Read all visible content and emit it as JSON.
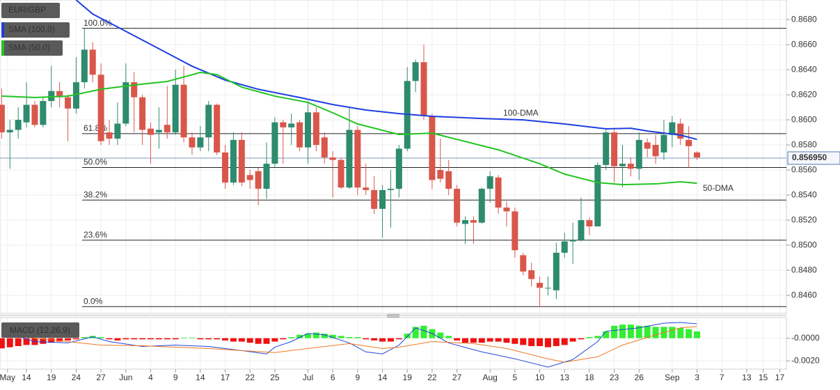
{
  "chart_data": [
    {
      "type": "candlestick",
      "xlim": [
        -0.2,
        94.8
      ],
      "ylim": [
        0.84456,
        0.86956
      ],
      "yticks": [
        {
          "value": 0.846,
          "label": "0.8460"
        },
        {
          "value": 0.848,
          "label": "0.8480"
        },
        {
          "value": 0.85,
          "label": "0.8500"
        },
        {
          "value": 0.852,
          "label": "0.8520"
        },
        {
          "value": 0.854,
          "label": "0.8540"
        },
        {
          "value": 0.856,
          "label": "0.8560"
        },
        {
          "value": 0.858,
          "label": "0.8580"
        },
        {
          "value": 0.86,
          "label": "0.8600"
        },
        {
          "value": 0.862,
          "label": "0.8620"
        },
        {
          "value": 0.864,
          "label": "0.8640"
        },
        {
          "value": 0.866,
          "label": "0.8660"
        },
        {
          "value": 0.868,
          "label": "0.8680"
        }
      ],
      "xticks": [
        {
          "value": 0.7,
          "label": "May"
        },
        {
          "value": 3,
          "label": "14"
        },
        {
          "value": 6,
          "label": "19"
        },
        {
          "value": 9,
          "label": "24"
        },
        {
          "value": 12,
          "label": "27"
        },
        {
          "value": 15,
          "label": "Jun"
        },
        {
          "value": 18,
          "label": "4"
        },
        {
          "value": 21,
          "label": "9"
        },
        {
          "value": 24,
          "label": "14"
        },
        {
          "value": 27,
          "label": "17"
        },
        {
          "value": 30,
          "label": "22"
        },
        {
          "value": 33,
          "label": "25"
        },
        {
          "value": 37,
          "label": "Jul"
        },
        {
          "value": 40,
          "label": "6"
        },
        {
          "value": 43,
          "label": "9"
        },
        {
          "value": 46,
          "label": "14"
        },
        {
          "value": 49,
          "label": "19"
        },
        {
          "value": 52,
          "label": "22"
        },
        {
          "value": 55,
          "label": "27"
        },
        {
          "value": 59,
          "label": "Aug"
        },
        {
          "value": 62,
          "label": "5"
        },
        {
          "value": 65,
          "label": "10"
        },
        {
          "value": 68,
          "label": "13"
        },
        {
          "value": 71,
          "label": "18"
        },
        {
          "value": 74,
          "label": "23"
        },
        {
          "value": 77,
          "label": "26"
        },
        {
          "value": 81,
          "label": "Sep"
        },
        {
          "value": 84,
          "label": "3"
        },
        {
          "value": 87,
          "label": "7"
        },
        {
          "value": 90,
          "label": "13"
        },
        {
          "value": 92,
          "label": "15"
        },
        {
          "value": 94,
          "label": "17"
        }
      ],
      "grid": true,
      "up_color": "#2e8b6e",
      "down_color": "#d9574a",
      "series": [
        {
          "name": "EUR/GBP",
          "open": [
            0.8612,
            0.859,
            0.8592,
            0.8598,
            0.8612,
            0.8596,
            0.8615,
            0.8623,
            0.8618,
            0.8609,
            0.863,
            0.8656,
            0.8636,
            0.859,
            0.8585,
            0.8597,
            0.863,
            0.8618,
            0.8593,
            0.859,
            0.8596,
            0.859,
            0.8628,
            0.8586,
            0.8578,
            0.8586,
            0.8612,
            0.8574,
            0.855,
            0.8584,
            0.8556,
            0.8559,
            0.8545,
            0.8565,
            0.8598,
            0.8594,
            0.8598,
            0.8578,
            0.8606,
            0.8586,
            0.857,
            0.8568,
            0.8546,
            0.8592,
            0.8546,
            0.8544,
            0.8529,
            0.8544,
            0.8545,
            0.8577,
            0.8631,
            0.8646,
            0.8603,
            0.856,
            0.8559,
            0.8545,
            0.8517,
            0.852,
            0.8518,
            0.8545,
            0.8554,
            0.853,
            0.8527,
            0.8492,
            0.848,
            0.847,
            0.8466,
            0.8464,
            0.8494,
            0.8503,
            0.8504,
            0.852,
            0.8515,
            0.8564,
            0.859,
            0.8563,
            0.8565,
            0.8561,
            0.8582,
            0.858,
            0.8574,
            0.8588,
            0.8597,
            0.8584,
            0.8574
          ],
          "high": [
            0.8625,
            0.86,
            0.861,
            0.863,
            0.8615,
            0.8618,
            0.8643,
            0.863,
            0.862,
            0.865,
            0.8673,
            0.8662,
            0.8645,
            0.86,
            0.8614,
            0.8645,
            0.8638,
            0.862,
            0.8598,
            0.861,
            0.8627,
            0.864,
            0.8643,
            0.859,
            0.8595,
            0.8615,
            0.8613,
            0.858,
            0.859,
            0.859,
            0.856,
            0.8562,
            0.8582,
            0.8602,
            0.86,
            0.8605,
            0.86,
            0.8615,
            0.861,
            0.859,
            0.8575,
            0.857,
            0.861,
            0.8595,
            0.8565,
            0.8555,
            0.8548,
            0.856,
            0.858,
            0.8642,
            0.8648,
            0.866,
            0.8605,
            0.8585,
            0.8568,
            0.8548,
            0.8523,
            0.8523,
            0.8546,
            0.8559,
            0.8556,
            0.8535,
            0.853,
            0.8494,
            0.8486,
            0.8475,
            0.8475,
            0.8502,
            0.851,
            0.8518,
            0.8538,
            0.8522,
            0.8566,
            0.8592,
            0.8593,
            0.858,
            0.857,
            0.859,
            0.8585,
            0.8588,
            0.86,
            0.8603,
            0.8601,
            0.8595,
            0.8575
          ],
          "low": [
            0.8585,
            0.8561,
            0.8585,
            0.8594,
            0.8594,
            0.8594,
            0.861,
            0.861,
            0.8583,
            0.8605,
            0.8625,
            0.863,
            0.858,
            0.858,
            0.858,
            0.8595,
            0.859,
            0.858,
            0.8565,
            0.8577,
            0.8585,
            0.8588,
            0.8582,
            0.8572,
            0.8575,
            0.8575,
            0.8572,
            0.8545,
            0.8548,
            0.8547,
            0.8545,
            0.8532,
            0.8537,
            0.8562,
            0.8565,
            0.858,
            0.8575,
            0.8565,
            0.8575,
            0.8565,
            0.8538,
            0.8545,
            0.8545,
            0.854,
            0.854,
            0.8525,
            0.8506,
            0.8514,
            0.8538,
            0.8575,
            0.8622,
            0.86,
            0.8545,
            0.855,
            0.854,
            0.8515,
            0.8501,
            0.8501,
            0.8517,
            0.8534,
            0.8525,
            0.8515,
            0.849,
            0.8476,
            0.8467,
            0.8451,
            0.846,
            0.8457,
            0.849,
            0.8485,
            0.8503,
            0.8508,
            0.8515,
            0.856,
            0.855,
            0.8546,
            0.8555,
            0.8552,
            0.857,
            0.8565,
            0.8568,
            0.8578,
            0.858,
            0.8562,
            0.8568
          ],
          "close": [
            0.859,
            0.8592,
            0.86,
            0.8612,
            0.8596,
            0.8615,
            0.8623,
            0.8618,
            0.8609,
            0.863,
            0.8656,
            0.8636,
            0.8583,
            0.8585,
            0.8597,
            0.863,
            0.8618,
            0.8592,
            0.8588,
            0.8592,
            0.859,
            0.8628,
            0.8586,
            0.8578,
            0.8586,
            0.8612,
            0.8574,
            0.855,
            0.8584,
            0.855,
            0.8552,
            0.8545,
            0.8565,
            0.8598,
            0.8594,
            0.8597,
            0.8578,
            0.8606,
            0.858,
            0.857,
            0.8568,
            0.8546,
            0.8592,
            0.8546,
            0.8544,
            0.8529,
            0.8544,
            0.8545,
            0.8577,
            0.8631,
            0.8646,
            0.8603,
            0.8552,
            0.8553,
            0.8545,
            0.8518,
            0.852,
            0.8518,
            0.8545,
            0.8555,
            0.853,
            0.8527,
            0.8496,
            0.8479,
            0.8473,
            0.8466,
            0.8466,
            0.8494,
            0.8503,
            0.8504,
            0.852,
            0.8515,
            0.8564,
            0.859,
            0.8563,
            0.8565,
            0.8561,
            0.8584,
            0.8577,
            0.8571,
            0.8588,
            0.8598,
            0.8585,
            0.8579,
            0.857
          ]
        },
        {
          "name": "SMA (100,0)",
          "color": "#1f3fe0",
          "x": [
            9,
            11,
            15,
            19,
            23,
            27,
            31,
            36,
            40,
            44,
            48,
            52,
            58,
            63,
            68,
            73,
            76,
            78,
            82,
            84
          ],
          "values": [
            0.86956,
            0.86844,
            0.86706,
            0.86567,
            0.86428,
            0.86317,
            0.86244,
            0.86178,
            0.86122,
            0.86078,
            0.8605,
            0.86028,
            0.86011,
            0.86,
            0.85967,
            0.85928,
            0.85933,
            0.85911,
            0.85878,
            0.85844
          ]
        },
        {
          "name": "SMA (50,0)",
          "color": "#22c422",
          "x": [
            0,
            4,
            8,
            12,
            16,
            20,
            24,
            26,
            29,
            33,
            37,
            40,
            43,
            48,
            52,
            55,
            60,
            65,
            68,
            72,
            75,
            79,
            82,
            84
          ],
          "values": [
            0.86189,
            0.86178,
            0.86189,
            0.86244,
            0.86278,
            0.86306,
            0.86378,
            0.86361,
            0.86261,
            0.86189,
            0.86139,
            0.86056,
            0.85967,
            0.85883,
            0.85894,
            0.85844,
            0.85761,
            0.8565,
            0.85567,
            0.855,
            0.85483,
            0.85489,
            0.85506,
            0.85494
          ]
        }
      ],
      "levels": [
        {
          "label": "100.0%",
          "value": 0.8673
        },
        {
          "label": "61.8%",
          "value": 0.8589
        },
        {
          "label": "50.0%",
          "value": 0.8562
        },
        {
          "label": "38.2%",
          "value": 0.8536
        },
        {
          "label": "23.6%",
          "value": 0.8504
        },
        {
          "label": "0.0%",
          "value": 0.8451
        }
      ],
      "last": {
        "value": 0.85695,
        "label": "0.856950"
      },
      "annotations": [
        {
          "text": "100-DMA",
          "color": "#6b7fe8"
        },
        {
          "text": "50-DMA",
          "color": "#22b822"
        }
      ]
    },
    {
      "type": "macd",
      "title": "MACD (12,26,9)",
      "ylim": [
        -0.00273,
        0.00182
      ],
      "yticks": [
        {
          "value": 0,
          "label": "-0.0000"
        },
        {
          "value": -0.002,
          "label": "-0.0020"
        }
      ],
      "up_color": "#33ee33",
      "down_color": "#ee1111",
      "histogram": [
        -0.0009,
        -0.0008,
        -0.0007,
        -0.0006,
        -0.0006,
        -0.0005,
        -0.0004,
        -0.0003,
        -0.0002,
        -0.0001,
        0.0001,
        0.0002,
        0.0001,
        -0.0001,
        -0.0002,
        -0.0001,
        -0.0001,
        -0.0001,
        -0.0001,
        -0.0001,
        -0.0001,
        -0.0001,
        5e-05,
        5e-05,
        -0.0001,
        -0.0001,
        -0.0001,
        -0.0002,
        -0.0003,
        -0.0003,
        -0.0004,
        -0.0005,
        -0.0005,
        -0.0003,
        -0.0001,
        0.0001,
        0.0003,
        0.0004,
        0.0005,
        0.0004,
        0.0003,
        0.0002,
        0.0001,
        0.0001,
        -0.0001,
        -0.0002,
        -0.0003,
        -0.0003,
        -0.0001,
        0.0004,
        0.001,
        0.0011,
        0.0008,
        0.0005,
        0.0002,
        -0.0002,
        -0.0004,
        -0.0004,
        -0.0004,
        -0.0003,
        -0.0003,
        -0.0004,
        -0.0005,
        -0.0006,
        -0.0007,
        -0.0007,
        -0.0008,
        -0.0007,
        -0.0006,
        -0.0003,
        -0.0001,
        0.0001,
        0.0002,
        0.0006,
        0.0011,
        0.0012,
        0.0012,
        0.0011,
        0.0011,
        0.001,
        0.001,
        0.001,
        0.0009,
        0.0008,
        0.0006
      ],
      "series": [
        {
          "color": "#2244dd",
          "x": [
            0,
            4,
            8,
            11,
            13,
            17,
            21,
            25,
            29,
            32,
            33,
            35,
            37,
            39,
            42,
            44,
            46,
            48,
            50,
            52,
            54,
            58,
            62,
            66,
            69,
            72,
            73,
            77,
            80,
            82,
            84
          ],
          "values": [
            0.00061,
            -0.0003,
            -0.00042,
            0.00012,
            -0.0003,
            -0.00073,
            -0.00061,
            -0.00073,
            -0.00109,
            -0.00139,
            -0.00079,
            -0.0003,
            0.00042,
            0.0003,
            -0.00042,
            -0.00121,
            -0.00139,
            -0.00061,
            0.00091,
            0.00042,
            -0.00042,
            -0.00121,
            -0.00182,
            -0.00255,
            -0.00188,
            -0.0003,
            0.00061,
            0.00091,
            0.00133,
            0.00139,
            0.00127
          ]
        },
        {
          "color": "#ee7722",
          "x": [
            0,
            8,
            12,
            17,
            25,
            29,
            33,
            37,
            42,
            46,
            48,
            52,
            57,
            61,
            66,
            68,
            72,
            75,
            79,
            82,
            84
          ],
          "values": [
            0.0003,
            -0.0003,
            -0.00061,
            -0.00067,
            -0.00091,
            -0.00109,
            -0.00127,
            -0.00091,
            -0.00048,
            -0.00091,
            -0.00079,
            -0.0003,
            -0.00048,
            -0.00091,
            -0.00182,
            -0.00212,
            -0.00164,
            -0.00061,
            0.0003,
            0.00091,
            0.00103
          ]
        }
      ]
    }
  ]
}
